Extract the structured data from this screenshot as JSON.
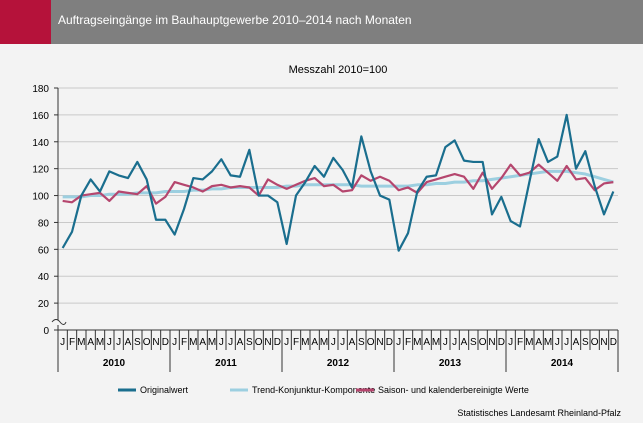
{
  "header": {
    "title": "Auftragseingänge im Bauhauptgewerbe 2010–2014 nach Monaten",
    "bar_color": "#7f7f7f",
    "accent_color": "#b5123a"
  },
  "source": "Statistisches Landesamt Rheinland-Pfalz",
  "chart_data": {
    "type": "line",
    "subtitle": "Messzahl 2010=100",
    "ylim": [
      0,
      180
    ],
    "yticks": [
      0,
      20,
      40,
      60,
      80,
      100,
      120,
      140,
      160,
      180
    ],
    "y_axis_break": true,
    "grid": "horizontal",
    "legend_position": "bottom",
    "month_labels": [
      "J",
      "F",
      "M",
      "A",
      "M",
      "J",
      "J",
      "A",
      "S",
      "O",
      "N",
      "D"
    ],
    "years": [
      "2010",
      "2011",
      "2012",
      "2013",
      "2014"
    ],
    "series": [
      {
        "name": "Originalwert",
        "color": "#1a6e8e",
        "values": [
          61,
          73,
          100,
          112,
          103,
          118,
          115,
          113,
          125,
          112,
          82,
          82,
          71,
          90,
          113,
          112,
          118,
          127,
          115,
          114,
          134,
          100,
          100,
          95,
          64,
          100,
          110,
          122,
          114,
          128,
          119,
          106,
          144,
          118,
          100,
          97,
          59,
          72,
          103,
          114,
          115,
          136,
          141,
          126,
          125,
          125,
          86,
          99,
          81,
          77,
          110,
          142,
          125,
          129,
          160,
          120,
          133,
          107,
          86,
          103
        ]
      },
      {
        "name": "Trend-Konjunktur-Komponente",
        "color": "#9ccfe0",
        "values": [
          99,
          99,
          99,
          100,
          100,
          101,
          101,
          101,
          102,
          102,
          102,
          103,
          103,
          103,
          104,
          104,
          105,
          105,
          106,
          106,
          106,
          106,
          106,
          106,
          107,
          107,
          108,
          108,
          108,
          108,
          108,
          108,
          107,
          107,
          107,
          107,
          107,
          107,
          108,
          108,
          109,
          109,
          110,
          110,
          111,
          111,
          112,
          113,
          114,
          115,
          116,
          117,
          118,
          118,
          118,
          117,
          116,
          114,
          112,
          110
        ]
      },
      {
        "name": "Saison- und kalenderbereinigte Werte",
        "color": "#b5466e",
        "values": [
          96,
          95,
          100,
          101,
          102,
          96,
          103,
          102,
          101,
          107,
          94,
          99,
          110,
          108,
          106,
          103,
          107,
          108,
          106,
          107,
          106,
          100,
          112,
          108,
          105,
          108,
          111,
          113,
          107,
          108,
          103,
          104,
          115,
          111,
          114,
          111,
          104,
          106,
          102,
          110,
          112,
          114,
          116,
          114,
          105,
          117,
          105,
          113,
          123,
          115,
          117,
          123,
          117,
          111,
          122,
          112,
          113,
          104,
          109,
          110
        ]
      }
    ]
  }
}
